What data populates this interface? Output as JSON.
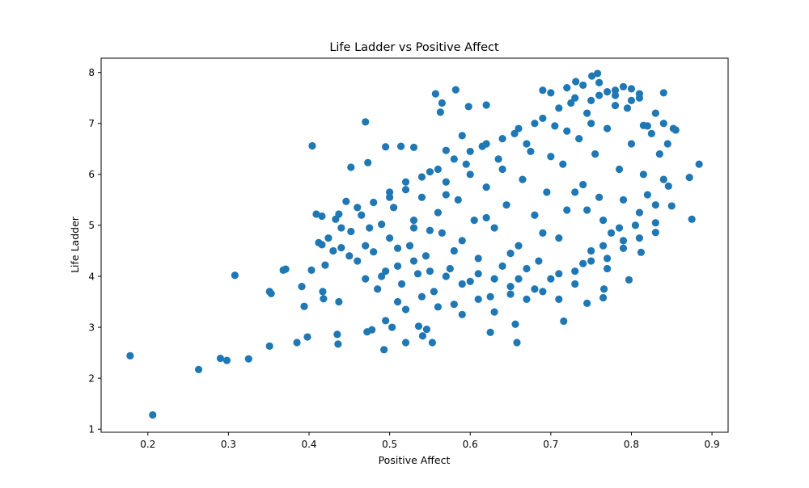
{
  "chart_data": {
    "type": "scatter",
    "title": "Life Ladder vs Positive Affect",
    "xlabel": "Positive Affect",
    "ylabel": "Life Ladder",
    "xlim": [
      0.142,
      0.92
    ],
    "ylim": [
      0.94,
      8.28
    ],
    "xticks": [
      "0.2",
      "0.3",
      "0.4",
      "0.5",
      "0.6",
      "0.7",
      "0.8",
      "0.9"
    ],
    "xtick_values": [
      0.2,
      0.3,
      0.4,
      0.5,
      0.6,
      0.7,
      0.8,
      0.9
    ],
    "yticks": [
      "1",
      "2",
      "3",
      "4",
      "5",
      "6",
      "7",
      "8"
    ],
    "ytick_values": [
      1,
      2,
      3,
      4,
      5,
      6,
      7,
      8
    ],
    "grid": false,
    "marker_color": "#1f77b4",
    "points": [
      [
        0.178,
        2.44
      ],
      [
        0.206,
        1.28
      ],
      [
        0.263,
        2.17
      ],
      [
        0.29,
        2.39
      ],
      [
        0.298,
        2.35
      ],
      [
        0.308,
        4.02
      ],
      [
        0.325,
        2.38
      ],
      [
        0.351,
        2.63
      ],
      [
        0.351,
        3.7
      ],
      [
        0.353,
        3.66
      ],
      [
        0.368,
        4.12
      ],
      [
        0.371,
        4.14
      ],
      [
        0.385,
        2.7
      ],
      [
        0.391,
        3.8
      ],
      [
        0.394,
        3.41
      ],
      [
        0.398,
        2.81
      ],
      [
        0.403,
        4.12
      ],
      [
        0.404,
        6.56
      ],
      [
        0.409,
        5.22
      ],
      [
        0.412,
        4.66
      ],
      [
        0.416,
        4.62
      ],
      [
        0.416,
        5.18
      ],
      [
        0.417,
        3.7
      ],
      [
        0.418,
        3.56
      ],
      [
        0.42,
        4.22
      ],
      [
        0.424,
        4.75
      ],
      [
        0.433,
        5.12
      ],
      [
        0.435,
        2.86
      ],
      [
        0.436,
        2.67
      ],
      [
        0.437,
        3.5
      ],
      [
        0.437,
        5.22
      ],
      [
        0.44,
        4.56
      ],
      [
        0.446,
        5.47
      ],
      [
        0.452,
        6.14
      ],
      [
        0.452,
        4.88
      ],
      [
        0.47,
        7.03
      ],
      [
        0.473,
        6.23
      ],
      [
        0.472,
        2.91
      ],
      [
        0.478,
        2.95
      ],
      [
        0.493,
        2.56
      ],
      [
        0.495,
        3.13
      ],
      [
        0.495,
        6.54
      ],
      [
        0.503,
        3.0
      ],
      [
        0.514,
        6.55
      ],
      [
        0.52,
        2.7
      ],
      [
        0.53,
        6.53
      ],
      [
        0.536,
        3.02
      ],
      [
        0.541,
        2.83
      ],
      [
        0.546,
        2.96
      ],
      [
        0.553,
        2.7
      ],
      [
        0.557,
        7.58
      ],
      [
        0.563,
        7.22
      ],
      [
        0.565,
        7.4
      ],
      [
        0.57,
        6.47
      ],
      [
        0.582,
        7.66
      ],
      [
        0.59,
        6.76
      ],
      [
        0.598,
        7.33
      ],
      [
        0.62,
        7.36
      ],
      [
        0.625,
        2.9
      ],
      [
        0.656,
        3.06
      ],
      [
        0.658,
        2.7
      ],
      [
        0.69,
        7.65
      ],
      [
        0.716,
        3.12
      ],
      [
        0.731,
        7.82
      ],
      [
        0.745,
        3.47
      ],
      [
        0.751,
        7.93
      ],
      [
        0.758,
        7.98
      ],
      [
        0.765,
        3.58
      ],
      [
        0.766,
        3.75
      ],
      [
        0.797,
        3.93
      ],
      [
        0.812,
        4.47
      ],
      [
        0.815,
        6.96
      ],
      [
        0.84,
        7.6
      ],
      [
        0.846,
        5.77
      ],
      [
        0.852,
        6.9
      ],
      [
        0.855,
        6.87
      ],
      [
        0.872,
        5.94
      ],
      [
        0.875,
        5.12
      ],
      [
        0.884,
        6.2
      ],
      [
        0.85,
        5.38
      ],
      [
        0.83,
        4.86
      ],
      [
        0.48,
        4.48
      ],
      [
        0.49,
        5.02
      ],
      [
        0.5,
        4.75
      ],
      [
        0.505,
        5.35
      ],
      [
        0.51,
        4.2
      ],
      [
        0.515,
        3.85
      ],
      [
        0.52,
        5.7
      ],
      [
        0.525,
        4.6
      ],
      [
        0.53,
        5.1
      ],
      [
        0.535,
        4.05
      ],
      [
        0.54,
        5.55
      ],
      [
        0.545,
        4.4
      ],
      [
        0.55,
        6.05
      ],
      [
        0.555,
        3.7
      ],
      [
        0.56,
        5.25
      ],
      [
        0.565,
        4.85
      ],
      [
        0.57,
        5.85
      ],
      [
        0.575,
        4.15
      ],
      [
        0.58,
        3.45
      ],
      [
        0.585,
        5.5
      ],
      [
        0.59,
        4.7
      ],
      [
        0.595,
        6.2
      ],
      [
        0.6,
        3.9
      ],
      [
        0.605,
        5.1
      ],
      [
        0.61,
        4.35
      ],
      [
        0.615,
        6.55
      ],
      [
        0.62,
        5.75
      ],
      [
        0.625,
        3.6
      ],
      [
        0.63,
        4.95
      ],
      [
        0.635,
        6.3
      ],
      [
        0.64,
        4.2
      ],
      [
        0.645,
        5.4
      ],
      [
        0.65,
        3.8
      ],
      [
        0.655,
        6.8
      ],
      [
        0.66,
        4.6
      ],
      [
        0.665,
        5.9
      ],
      [
        0.67,
        3.55
      ],
      [
        0.675,
        6.45
      ],
      [
        0.68,
        5.2
      ],
      [
        0.685,
        4.3
      ],
      [
        0.69,
        7.1
      ],
      [
        0.695,
        5.65
      ],
      [
        0.7,
        3.95
      ],
      [
        0.705,
        6.95
      ],
      [
        0.71,
        4.75
      ],
      [
        0.715,
        6.2
      ],
      [
        0.72,
        5.3
      ],
      [
        0.725,
        7.4
      ],
      [
        0.73,
        4.1
      ],
      [
        0.735,
        6.7
      ],
      [
        0.74,
        5.8
      ],
      [
        0.745,
        7.2
      ],
      [
        0.75,
        4.5
      ],
      [
        0.755,
        6.4
      ],
      [
        0.76,
        7.55
      ],
      [
        0.765,
        5.1
      ],
      [
        0.77,
        6.9
      ],
      [
        0.775,
        4.85
      ],
      [
        0.78,
        7.65
      ],
      [
        0.785,
        6.1
      ],
      [
        0.79,
        5.5
      ],
      [
        0.795,
        7.3
      ],
      [
        0.8,
        6.6
      ],
      [
        0.805,
        5.0
      ],
      [
        0.81,
        7.5
      ],
      [
        0.815,
        6.0
      ],
      [
        0.82,
        5.6
      ],
      [
        0.825,
        6.8
      ],
      [
        0.83,
        7.2
      ],
      [
        0.835,
        6.4
      ],
      [
        0.84,
        5.9
      ],
      [
        0.845,
        6.6
      ],
      [
        0.46,
        4.3
      ],
      [
        0.465,
        5.2
      ],
      [
        0.47,
        3.95
      ],
      [
        0.475,
        4.95
      ],
      [
        0.485,
        3.75
      ],
      [
        0.495,
        4.1
      ],
      [
        0.5,
        5.55
      ],
      [
        0.51,
        3.5
      ],
      [
        0.52,
        3.35
      ],
      [
        0.53,
        4.95
      ],
      [
        0.54,
        3.6
      ],
      [
        0.55,
        4.9
      ],
      [
        0.56,
        3.4
      ],
      [
        0.57,
        5.6
      ],
      [
        0.58,
        4.5
      ],
      [
        0.59,
        3.25
      ],
      [
        0.6,
        6.0
      ],
      [
        0.61,
        3.55
      ],
      [
        0.62,
        5.15
      ],
      [
        0.63,
        3.3
      ],
      [
        0.64,
        6.1
      ],
      [
        0.65,
        4.45
      ],
      [
        0.66,
        3.95
      ],
      [
        0.67,
        6.6
      ],
      [
        0.68,
        3.75
      ],
      [
        0.69,
        4.85
      ],
      [
        0.7,
        6.35
      ],
      [
        0.71,
        3.55
      ],
      [
        0.72,
        6.85
      ],
      [
        0.73,
        5.65
      ],
      [
        0.74,
        4.25
      ],
      [
        0.75,
        7.0
      ],
      [
        0.76,
        5.55
      ],
      [
        0.77,
        4.35
      ],
      [
        0.78,
        7.35
      ],
      [
        0.79,
        4.7
      ],
      [
        0.8,
        7.45
      ],
      [
        0.81,
        5.25
      ],
      [
        0.82,
        6.95
      ],
      [
        0.83,
        5.4
      ],
      [
        0.84,
        7.0
      ],
      [
        0.7,
        7.6
      ],
      [
        0.72,
        7.7
      ],
      [
        0.74,
        7.75
      ],
      [
        0.76,
        7.8
      ],
      [
        0.78,
        7.55
      ],
      [
        0.8,
        7.68
      ],
      [
        0.71,
        7.3
      ],
      [
        0.73,
        7.5
      ],
      [
        0.75,
        7.45
      ],
      [
        0.77,
        7.62
      ],
      [
        0.79,
        7.72
      ],
      [
        0.81,
        7.58
      ],
      [
        0.68,
        7.0
      ],
      [
        0.66,
        6.9
      ],
      [
        0.64,
        6.7
      ],
      [
        0.62,
        6.6
      ],
      [
        0.6,
        6.45
      ],
      [
        0.58,
        6.3
      ],
      [
        0.56,
        6.1
      ],
      [
        0.54,
        5.95
      ],
      [
        0.52,
        5.85
      ],
      [
        0.5,
        5.65
      ],
      [
        0.48,
        5.45
      ],
      [
        0.46,
        5.35
      ],
      [
        0.44,
        4.95
      ],
      [
        0.43,
        4.5
      ],
      [
        0.45,
        4.4
      ],
      [
        0.47,
        4.6
      ],
      [
        0.49,
        4.0
      ],
      [
        0.51,
        4.55
      ],
      [
        0.53,
        4.3
      ],
      [
        0.55,
        4.1
      ],
      [
        0.57,
        4.0
      ],
      [
        0.59,
        3.85
      ],
      [
        0.61,
        4.05
      ],
      [
        0.63,
        3.95
      ],
      [
        0.65,
        3.65
      ],
      [
        0.67,
        4.15
      ],
      [
        0.69,
        3.7
      ],
      [
        0.71,
        4.05
      ],
      [
        0.73,
        3.85
      ],
      [
        0.75,
        4.3
      ],
      [
        0.77,
        4.15
      ],
      [
        0.79,
        4.55
      ],
      [
        0.81,
        4.75
      ],
      [
        0.83,
        5.05
      ],
      [
        0.785,
        4.95
      ],
      [
        0.765,
        4.6
      ],
      [
        0.745,
        5.3
      ]
    ]
  }
}
